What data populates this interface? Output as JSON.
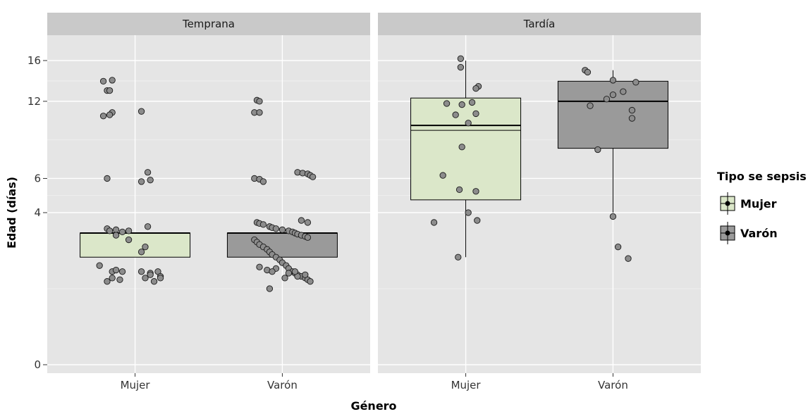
{
  "chart_data": {
    "type": "box",
    "facets": [
      "Temprana",
      "Tardía"
    ],
    "categories": [
      "Mujer",
      "Varón"
    ],
    "xlabel": "Género",
    "ylabel": "Edad (días)",
    "y_scale": "sqrt",
    "y_ticks": [
      0,
      4,
      6,
      12,
      16
    ],
    "ylim": [
      0,
      17
    ],
    "grid": true,
    "legend": {
      "title": "Tipo se sepsis",
      "position": "right",
      "entries": [
        {
          "name": "Mujer",
          "color": "#dbe7c9"
        },
        {
          "name": "Varón",
          "color": "#9a9a9a"
        }
      ]
    },
    "boxes": [
      {
        "facet": "Temprana",
        "category": "Mujer",
        "q1": 2.0,
        "median": 3.0,
        "q3": 3.0,
        "lower_whisker": 2.0,
        "upper_whisker": 3.0,
        "mean": 3.0
      },
      {
        "facet": "Temprana",
        "category": "Varón",
        "q1": 2.0,
        "median": 3.0,
        "q3": 3.0,
        "lower_whisker": 2.0,
        "upper_whisker": 3.0,
        "mean": 3.0
      },
      {
        "facet": "Tardía",
        "category": "Mujer",
        "q1": 4.7,
        "median": 9.9,
        "q3": 12.3,
        "lower_whisker": 2.0,
        "upper_whisker": 16.0,
        "mean": 9.5
      },
      {
        "facet": "Tardía",
        "category": "Varón",
        "q1": 8.1,
        "median": 12.0,
        "q3": 13.9,
        "lower_whisker": 4.0,
        "upper_whisker": 15.0,
        "mean": 12.0
      }
    ],
    "points": [
      {
        "facet": "Temprana",
        "category": "Mujer",
        "jitter": [
          -0.25,
          -0.18,
          -0.22,
          -0.2,
          -0.18,
          -0.25,
          0.05,
          -0.2,
          0.1,
          0.12,
          -0.22,
          0.05,
          0.1,
          -0.22,
          -0.2,
          -0.15,
          -0.1,
          -0.05,
          -0.15,
          -0.05,
          0.08,
          0.05,
          -0.28,
          -0.18,
          -0.15,
          -0.1,
          0.05,
          0.12,
          0.18,
          0.2,
          -0.22,
          -0.18,
          -0.12,
          0.08,
          0.12,
          0.2,
          0.15
        ],
        "values": [
          13.9,
          14.0,
          13.0,
          13.0,
          11.0,
          10.7,
          11.1,
          10.8,
          6.4,
          5.9,
          6.0,
          5.8,
          3.3,
          3.2,
          3.1,
          3.15,
          3.05,
          3.1,
          2.9,
          2.7,
          2.4,
          2.2,
          1.7,
          1.5,
          1.55,
          1.5,
          1.5,
          1.45,
          1.5,
          1.35,
          1.2,
          1.3,
          1.25,
          1.3,
          1.4,
          1.3,
          1.2
        ]
      },
      {
        "facet": "Temprana",
        "category": "Varón",
        "jitter": [
          -0.2,
          -0.18,
          -0.22,
          -0.18,
          0.12,
          0.16,
          0.2,
          0.22,
          0.24,
          -0.22,
          -0.18,
          -0.15,
          0.15,
          0.2,
          -0.2,
          -0.18,
          -0.15,
          -0.1,
          -0.08,
          -0.05,
          0.0,
          0.05,
          0.08,
          0.1,
          0.12,
          0.15,
          0.18,
          0.2,
          -0.22,
          -0.2,
          -0.18,
          -0.15,
          -0.12,
          -0.1,
          -0.08,
          -0.05,
          -0.02,
          0.0,
          0.03,
          0.05,
          0.08,
          0.1,
          0.12,
          0.15,
          0.18,
          0.2,
          0.22,
          -0.12,
          -0.05,
          0.05,
          0.12,
          -0.18,
          -0.08,
          0.02,
          0.1,
          0.18,
          -0.1
        ],
        "values": [
          12.1,
          12.0,
          11.0,
          11.0,
          6.4,
          6.35,
          6.3,
          6.2,
          6.1,
          6.0,
          5.95,
          5.8,
          3.6,
          3.5,
          3.5,
          3.45,
          3.4,
          3.3,
          3.25,
          3.2,
          3.15,
          3.1,
          3.05,
          3.0,
          2.95,
          2.9,
          2.85,
          2.8,
          2.7,
          2.6,
          2.5,
          2.4,
          2.3,
          2.2,
          2.1,
          2.0,
          1.9,
          1.8,
          1.7,
          1.6,
          1.5,
          1.45,
          1.4,
          1.35,
          1.3,
          1.25,
          1.2,
          1.55,
          1.6,
          1.45,
          1.35,
          1.65,
          1.5,
          1.3,
          1.5,
          1.4,
          1.0
        ]
      },
      {
        "facet": "Tardía",
        "category": "Mujer",
        "jitter": [
          -0.04,
          -0.04,
          0.1,
          0.08,
          -0.15,
          -0.03,
          0.05,
          -0.08,
          0.08,
          0.02,
          -0.03,
          -0.18,
          0.08,
          -0.25,
          0.09,
          -0.06,
          0.02,
          -0.05
        ],
        "values": [
          16.2,
          15.3,
          13.4,
          13.2,
          11.8,
          11.7,
          11.9,
          10.8,
          10.9,
          10.1,
          8.2,
          6.2,
          5.2,
          3.5,
          3.6,
          2.0,
          4.0,
          5.3
        ]
      },
      {
        "facet": "Tardía",
        "category": "Varón",
        "jitter": [
          -0.22,
          -0.2,
          0.18,
          0.0,
          0.08,
          0.0,
          -0.05,
          0.15,
          -0.18,
          0.15,
          -0.12,
          0.0,
          0.04,
          0.12
        ],
        "values": [
          15.0,
          14.8,
          13.8,
          14.0,
          12.9,
          12.6,
          12.2,
          11.2,
          11.6,
          10.5,
          8.0,
          3.8,
          2.4,
          1.95
        ]
      }
    ]
  }
}
